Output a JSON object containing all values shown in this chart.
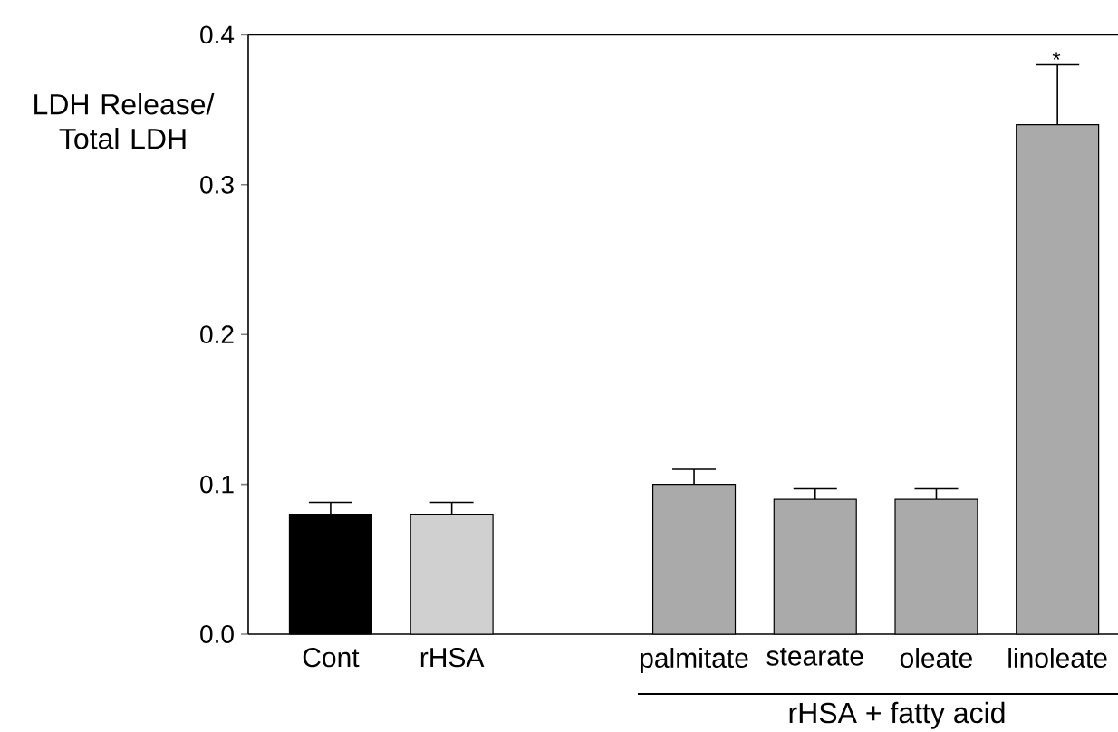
{
  "chart_data": {
    "type": "bar",
    "ylabel": "LDH Release/ Total LDH",
    "categories": [
      "Cont",
      "rHSA",
      null,
      "palmitate",
      "stearate",
      "oleate",
      "linoleate"
    ],
    "values": [
      0.08,
      0.08,
      null,
      0.1,
      0.09,
      0.09,
      0.34
    ],
    "errors": [
      0.008,
      0.008,
      null,
      0.01,
      0.007,
      0.007,
      0.04
    ],
    "colors": [
      "#000000",
      "#d0d0d0",
      null,
      "#aaaaaa",
      "#aaaaaa",
      "#aaaaaa",
      "#aaaaaa"
    ],
    "ylim": [
      0,
      0.4
    ],
    "yticks": [
      {
        "value": 0,
        "label": "0.0"
      },
      0.1,
      0.2,
      0.3,
      0.4
    ],
    "annotations": [
      "*",
      "rHSA + fatty acid"
    ],
    "grid": false
  }
}
